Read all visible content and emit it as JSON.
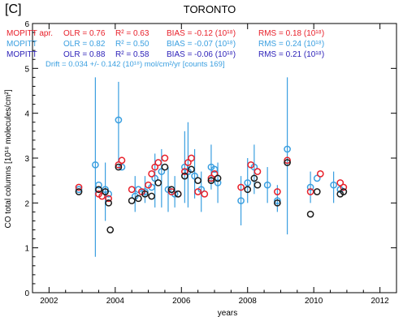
{
  "chart_data": {
    "type": "scatter",
    "panel_label": "[C]",
    "title": "TORONTO",
    "xlabel": "years",
    "ylabel": "CO total columns [10¹⁸ molecules/cm²]",
    "xlim": [
      2001.5,
      2012.5
    ],
    "ylim": [
      0,
      6
    ],
    "x_ticks": [
      2002,
      2004,
      2006,
      2008,
      2010,
      2012
    ],
    "x_tick_labels": [
      "2002",
      "2004",
      "2006",
      "2008",
      "2010",
      "2012"
    ],
    "y_ticks": [
      0,
      1,
      2,
      3,
      4,
      5,
      6
    ],
    "y_tick_labels": [
      "0",
      "1",
      "2",
      "3",
      "4",
      "5",
      "6"
    ],
    "grid": false,
    "annotations": [
      {
        "name": "MOPITT apr.",
        "olr": "OLR = 0.76",
        "r2": "R² = 0.63",
        "bias": "BIAS = -0.12 (10¹⁸)",
        "rms": "RMS = 0.18 (10¹⁸)",
        "color": "#e8202a"
      },
      {
        "name": "MOPITT",
        "olr": "OLR = 0.82",
        "r2": "R² = 0.50",
        "bias": "BIAS = -0.07 (10¹⁸)",
        "rms": "RMS = 0.24 (10¹⁸)",
        "color": "#3a9fe0"
      },
      {
        "name": "MOPITT",
        "olr": "OLR = 0.88",
        "r2": "R² = 0.58",
        "bias": "BIAS = -0.06 (10¹⁸)",
        "rms": "RMS = 0.21 (10¹⁸)",
        "color": "#2a1fb8"
      }
    ],
    "drift_text": "Drift = 0.034 +/-  0.142 (10¹⁸) mol/cm²/yr  [counts  169]",
    "drift_color": "#3a9fe0",
    "series": [
      {
        "color": "#3a9fe0",
        "marker": "open-circle",
        "points": [
          [
            2002.9,
            2.3
          ],
          [
            2003.4,
            2.85
          ],
          [
            2003.5,
            2.4
          ],
          [
            2003.7,
            2.3
          ],
          [
            2003.8,
            2.2
          ],
          [
            2004.1,
            3.85
          ],
          [
            2004.2,
            2.8
          ],
          [
            2004.6,
            2.15
          ],
          [
            2004.7,
            2.3
          ],
          [
            2004.9,
            2.25
          ],
          [
            2005.1,
            2.35
          ],
          [
            2005.2,
            2.55
          ],
          [
            2005.4,
            2.7
          ],
          [
            2005.6,
            2.3
          ],
          [
            2005.8,
            2.2
          ],
          [
            2006.1,
            2.8
          ],
          [
            2006.2,
            2.7
          ],
          [
            2006.4,
            2.6
          ],
          [
            2006.6,
            2.3
          ],
          [
            2006.9,
            2.8
          ],
          [
            2007.0,
            2.75
          ],
          [
            2007.1,
            2.45
          ],
          [
            2007.8,
            2.05
          ],
          [
            2008.0,
            2.45
          ],
          [
            2008.2,
            2.8
          ],
          [
            2008.6,
            2.4
          ],
          [
            2008.9,
            2.05
          ],
          [
            2009.2,
            3.2
          ],
          [
            2009.9,
            2.35
          ],
          [
            2010.1,
            2.55
          ],
          [
            2010.6,
            2.4
          ],
          [
            2010.8,
            2.3
          ]
        ],
        "error_bars": [
          [
            2003.4,
            0.8,
            4.8
          ],
          [
            2003.7,
            1.6,
            2.9
          ],
          [
            2004.1,
            2.9,
            4.7
          ],
          [
            2004.6,
            1.8,
            2.6
          ],
          [
            2004.9,
            2.0,
            2.6
          ],
          [
            2005.2,
            1.9,
            3.1
          ],
          [
            2005.4,
            1.9,
            3.2
          ],
          [
            2005.6,
            1.8,
            2.8
          ],
          [
            2005.8,
            1.9,
            2.6
          ],
          [
            2006.1,
            2.0,
            3.6
          ],
          [
            2006.2,
            1.9,
            3.8
          ],
          [
            2006.4,
            2.1,
            3.2
          ],
          [
            2006.6,
            1.8,
            2.7
          ],
          [
            2006.9,
            2.3,
            3.3
          ],
          [
            2007.1,
            2.0,
            2.9
          ],
          [
            2007.8,
            1.5,
            2.6
          ],
          [
            2008.0,
            2.0,
            3.0
          ],
          [
            2008.2,
            2.2,
            3.3
          ],
          [
            2008.6,
            2.0,
            2.8
          ],
          [
            2008.9,
            1.8,
            2.4
          ],
          [
            2009.2,
            1.3,
            4.8
          ],
          [
            2009.9,
            2.0,
            2.7
          ],
          [
            2010.6,
            2.0,
            2.7
          ]
        ]
      },
      {
        "color": "#e8202a",
        "marker": "open-circle",
        "points": [
          [
            2002.9,
            2.35
          ],
          [
            2003.5,
            2.2
          ],
          [
            2003.6,
            2.15
          ],
          [
            2003.8,
            2.1
          ],
          [
            2004.1,
            2.85
          ],
          [
            2004.2,
            2.95
          ],
          [
            2004.5,
            2.3
          ],
          [
            2004.8,
            2.25
          ],
          [
            2005.0,
            2.4
          ],
          [
            2005.1,
            2.65
          ],
          [
            2005.2,
            2.8
          ],
          [
            2005.3,
            2.9
          ],
          [
            2005.5,
            3.0
          ],
          [
            2005.7,
            2.25
          ],
          [
            2005.9,
            2.2
          ],
          [
            2006.1,
            2.7
          ],
          [
            2006.2,
            2.9
          ],
          [
            2006.3,
            3.0
          ],
          [
            2006.5,
            2.25
          ],
          [
            2006.7,
            2.2
          ],
          [
            2006.9,
            2.55
          ],
          [
            2007.0,
            2.65
          ],
          [
            2007.8,
            2.35
          ],
          [
            2008.1,
            2.85
          ],
          [
            2008.3,
            2.7
          ],
          [
            2008.9,
            2.25
          ],
          [
            2009.2,
            2.95
          ],
          [
            2009.9,
            2.25
          ],
          [
            2010.2,
            2.65
          ],
          [
            2010.8,
            2.45
          ],
          [
            2010.9,
            2.35
          ]
        ]
      },
      {
        "color": "#1a1a1a",
        "marker": "open-circle",
        "points": [
          [
            2002.9,
            2.25
          ],
          [
            2003.5,
            2.3
          ],
          [
            2003.7,
            2.25
          ],
          [
            2003.8,
            2.0
          ],
          [
            2003.85,
            1.4
          ],
          [
            2004.1,
            2.8
          ],
          [
            2004.5,
            2.05
          ],
          [
            2004.7,
            2.1
          ],
          [
            2004.9,
            2.2
          ],
          [
            2005.1,
            2.15
          ],
          [
            2005.3,
            2.45
          ],
          [
            2005.5,
            2.8
          ],
          [
            2005.7,
            2.3
          ],
          [
            2005.9,
            2.2
          ],
          [
            2006.1,
            2.6
          ],
          [
            2006.3,
            2.75
          ],
          [
            2006.5,
            2.5
          ],
          [
            2006.9,
            2.5
          ],
          [
            2007.1,
            2.55
          ],
          [
            2008.0,
            2.3
          ],
          [
            2008.2,
            2.55
          ],
          [
            2008.3,
            2.4
          ],
          [
            2008.9,
            2.0
          ],
          [
            2009.2,
            2.9
          ],
          [
            2009.9,
            1.75
          ],
          [
            2010.1,
            2.25
          ],
          [
            2010.8,
            2.2
          ],
          [
            2010.9,
            2.25
          ]
        ]
      }
    ]
  }
}
